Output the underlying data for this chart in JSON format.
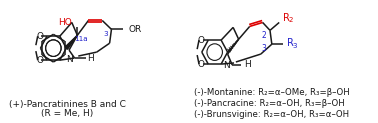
{
  "left_label_line1": "(+)-Pancratinines B and C",
  "left_label_line2": "(R = Me, H)",
  "right_label1": "(-)-Montanine: R₂=α–OMe, R₃=β–OH",
  "right_label2": "(-)-Pancracine: R₂=α–OH, R₃=β–OH",
  "right_label3": "(-)-Brunsvigine: R₂=α–OH, R₃=α–OH",
  "bg_color": "#ffffff",
  "text_color": "#1a1a1a",
  "red_color": "#dd0000",
  "blue_color": "#2222cc",
  "figsize": [
    3.78,
    1.23
  ],
  "dpi": 100
}
